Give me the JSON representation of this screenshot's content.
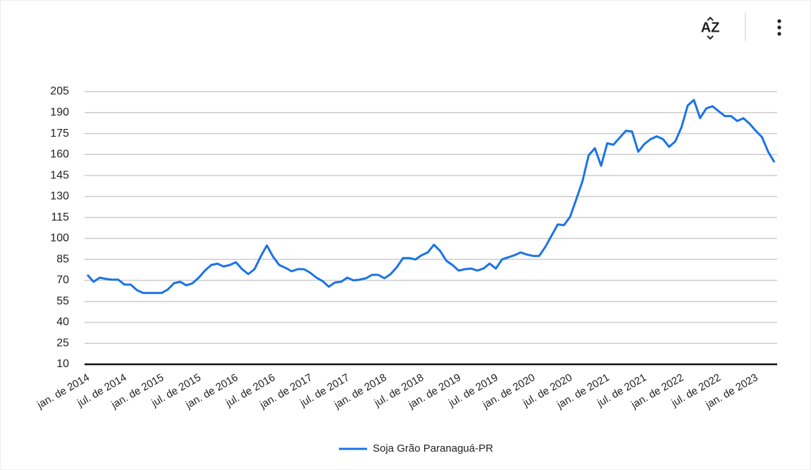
{
  "toolbar": {
    "sort_label": "AZ"
  },
  "chart_data": {
    "type": "line",
    "categories": [
      "jan. de 2014",
      null,
      null,
      null,
      null,
      null,
      "jul. de 2014",
      null,
      null,
      null,
      null,
      null,
      "jan. de 2015",
      null,
      null,
      null,
      null,
      null,
      "jul. de 2015",
      null,
      null,
      null,
      null,
      null,
      "jan. de 2016",
      null,
      null,
      null,
      null,
      null,
      "jul. de 2016",
      null,
      null,
      null,
      null,
      null,
      "jan. de 2017",
      null,
      null,
      null,
      null,
      null,
      "jul. de 2017",
      null,
      null,
      null,
      null,
      null,
      "jan. de 2018",
      null,
      null,
      null,
      null,
      null,
      "jul. de 2018",
      null,
      null,
      null,
      null,
      null,
      "jan. de 2019",
      null,
      null,
      null,
      null,
      null,
      "jul. de 2019",
      null,
      null,
      null,
      null,
      null,
      "jan. de 2020",
      null,
      null,
      null,
      null,
      null,
      "jul. de 2020",
      null,
      null,
      null,
      null,
      null,
      "jan. de 2021",
      null,
      null,
      null,
      null,
      null,
      "jul. de 2021",
      null,
      null,
      null,
      null,
      null,
      "jan. de 2022",
      null,
      null,
      null,
      null,
      null,
      "jul. de 2022",
      null,
      null,
      null,
      null,
      null,
      "jan. de 2023",
      null,
      null,
      null
    ],
    "series": [
      {
        "name": "Soja Grão Paranaguá-PR",
        "color": "#1a73e8",
        "values": [
          74,
          69,
          72,
          71,
          70.5,
          70.5,
          67,
          67,
          63,
          61,
          61,
          61,
          61,
          63.5,
          68,
          69,
          66.5,
          68,
          72,
          77,
          81,
          82,
          80,
          81,
          83,
          78,
          74.5,
          78,
          87,
          95,
          87,
          81,
          79,
          76.5,
          78,
          78,
          75.5,
          72,
          69.5,
          65.5,
          68.5,
          69,
          72,
          70,
          70.5,
          71.5,
          74,
          74,
          71.5,
          74.5,
          79.5,
          86,
          86,
          85,
          88,
          90,
          95.5,
          91,
          84,
          81,
          77,
          78,
          78.5,
          77,
          78.5,
          82,
          78.5,
          85,
          86.5,
          88,
          90,
          88.5,
          87.5,
          87.5,
          94,
          102,
          110,
          109.5,
          115.5,
          128,
          141,
          159.5,
          164.5,
          152,
          168,
          167,
          172,
          177,
          176.5,
          162,
          167.5,
          171,
          173,
          171,
          165.5,
          169.5,
          179.5,
          195,
          199,
          186,
          193,
          194.5,
          191,
          187.5,
          187.5,
          184,
          186,
          182,
          177,
          172.5,
          162,
          154.5
        ]
      }
    ],
    "ylim": [
      10,
      205
    ],
    "yticks": [
      10,
      25,
      40,
      55,
      70,
      85,
      100,
      115,
      130,
      145,
      160,
      175,
      190,
      205
    ],
    "grid": true,
    "legend": "bottom"
  }
}
